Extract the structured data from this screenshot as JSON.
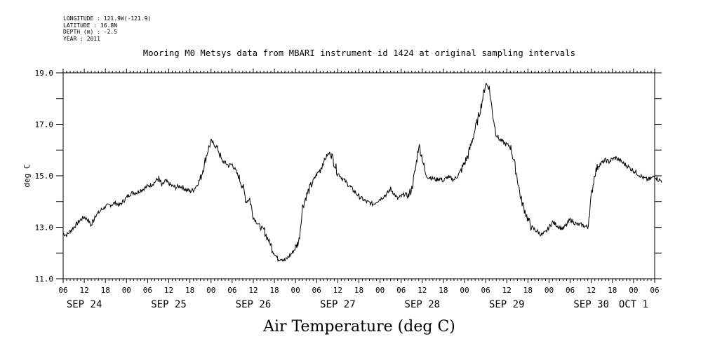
{
  "header": {
    "longitude": "LONGITUDE : 121.9W(-121.9)",
    "latitude": "LATITUDE : 36.8N",
    "depth": "DEPTH (m) : -2.5",
    "year": "YEAR : 2011"
  },
  "chart_data": {
    "type": "line",
    "title": "Mooring M0 Metsys data from MBARI instrument id 1424 at original sampling intervals",
    "xlabel": "Air Temperature (deg C)",
    "ylabel": "deg C",
    "ylim": [
      11.0,
      19.0
    ],
    "yticks": [
      "11.0",
      "13.0",
      "15.0",
      "17.0",
      "19.0"
    ],
    "xlim_hours": [
      0,
      168
    ],
    "hour_ticks": [
      "06",
      "12",
      "18",
      "00",
      "06",
      "12",
      "18",
      "00",
      "06",
      "12",
      "18",
      "00",
      "06",
      "12",
      "18",
      "00",
      "06",
      "12",
      "18",
      "00",
      "06",
      "12",
      "18",
      "00",
      "06",
      "12",
      "18",
      "00",
      "06"
    ],
    "day_labels": [
      "SEP 24",
      "SEP 25",
      "SEP 26",
      "SEP 27",
      "SEP 28",
      "SEP 29",
      "SEP 30",
      "OCT 1"
    ],
    "grid": false,
    "series": [
      {
        "x_hours_from_sep24_06": [
          0,
          1,
          2,
          3,
          4,
          5,
          6,
          7,
          8,
          9,
          10,
          11,
          12,
          13,
          14,
          15,
          16,
          17,
          18,
          19,
          20,
          21,
          22,
          23,
          24,
          25,
          26,
          27,
          28,
          29,
          30,
          31,
          32,
          33,
          34,
          35,
          36,
          37,
          38,
          39,
          40,
          41,
          42,
          43,
          44,
          45,
          46,
          47,
          48,
          49,
          50,
          51,
          52,
          53,
          54,
          55,
          56,
          57,
          58,
          59,
          60,
          61,
          62,
          63,
          64,
          65,
          66,
          67,
          68,
          69,
          70,
          71,
          72,
          73,
          74,
          75,
          76,
          77,
          78,
          79,
          80,
          81,
          82,
          83,
          84,
          85,
          86,
          87,
          88,
          89,
          90,
          91,
          92,
          93,
          94,
          95,
          96,
          97,
          98,
          99,
          100,
          101,
          102,
          103,
          104,
          105,
          106,
          107,
          108,
          109,
          110,
          111,
          112,
          113,
          114,
          115,
          116,
          117,
          118,
          119,
          120,
          121,
          122,
          123,
          124,
          125,
          126,
          127,
          128,
          129,
          130,
          131,
          132,
          133,
          134,
          135,
          136,
          137,
          138,
          139,
          140,
          141,
          142,
          143,
          144,
          145,
          146,
          147,
          148,
          149,
          150,
          151,
          152,
          153,
          154,
          155,
          156,
          157,
          158,
          159,
          160,
          161,
          162,
          163,
          164,
          165,
          166,
          167,
          168,
          169,
          170
        ],
        "values": [
          12.75,
          12.7,
          12.85,
          13.0,
          13.15,
          13.3,
          13.4,
          13.3,
          13.05,
          13.45,
          13.55,
          13.7,
          13.8,
          13.85,
          13.9,
          13.95,
          13.85,
          14.0,
          14.15,
          14.3,
          14.35,
          14.35,
          14.45,
          14.5,
          14.6,
          14.65,
          14.75,
          14.9,
          14.6,
          14.8,
          14.7,
          14.6,
          14.55,
          14.6,
          14.55,
          14.45,
          14.4,
          14.45,
          14.65,
          14.9,
          15.4,
          15.95,
          16.35,
          16.2,
          16.05,
          15.6,
          15.5,
          15.4,
          15.45,
          15.2,
          14.9,
          14.6,
          14.0,
          14.1,
          13.4,
          13.2,
          13.0,
          12.9,
          12.6,
          12.3,
          12.0,
          11.75,
          11.8,
          11.7,
          11.85,
          12.0,
          12.2,
          12.5,
          13.8,
          14.2,
          14.5,
          14.8,
          15.05,
          15.25,
          15.55,
          15.8,
          15.9,
          15.5,
          15.1,
          14.95,
          14.8,
          14.65,
          14.5,
          14.35,
          14.2,
          14.1,
          14.0,
          13.95,
          13.9,
          14.0,
          14.1,
          14.2,
          14.3,
          14.5,
          14.3,
          14.1,
          14.2,
          14.3,
          14.2,
          14.5,
          15.2,
          16.2,
          15.7,
          15.0,
          14.95,
          14.9,
          14.85,
          14.9,
          14.8,
          14.95,
          14.9,
          14.85,
          15.0,
          15.2,
          15.5,
          15.8,
          16.3,
          16.8,
          17.3,
          17.9,
          18.6,
          18.4,
          17.4,
          16.6,
          16.4,
          16.3,
          16.2,
          16.15,
          15.6,
          14.9,
          14.1,
          13.7,
          13.3,
          13.0,
          12.9,
          12.8,
          12.7,
          12.8,
          13.0,
          13.2,
          13.1,
          13.0,
          12.95,
          13.1,
          13.3,
          13.2,
          13.1,
          13.1,
          13.05,
          13.0,
          14.2,
          15.1,
          15.4,
          15.5,
          15.6,
          15.55,
          15.65,
          15.7,
          15.6,
          15.5,
          15.4,
          15.3,
          15.2,
          15.1,
          15.0,
          14.9,
          14.85,
          14.9,
          15.0,
          14.85,
          14.8,
          14.7,
          14.8,
          15.1
        ]
      }
    ]
  }
}
